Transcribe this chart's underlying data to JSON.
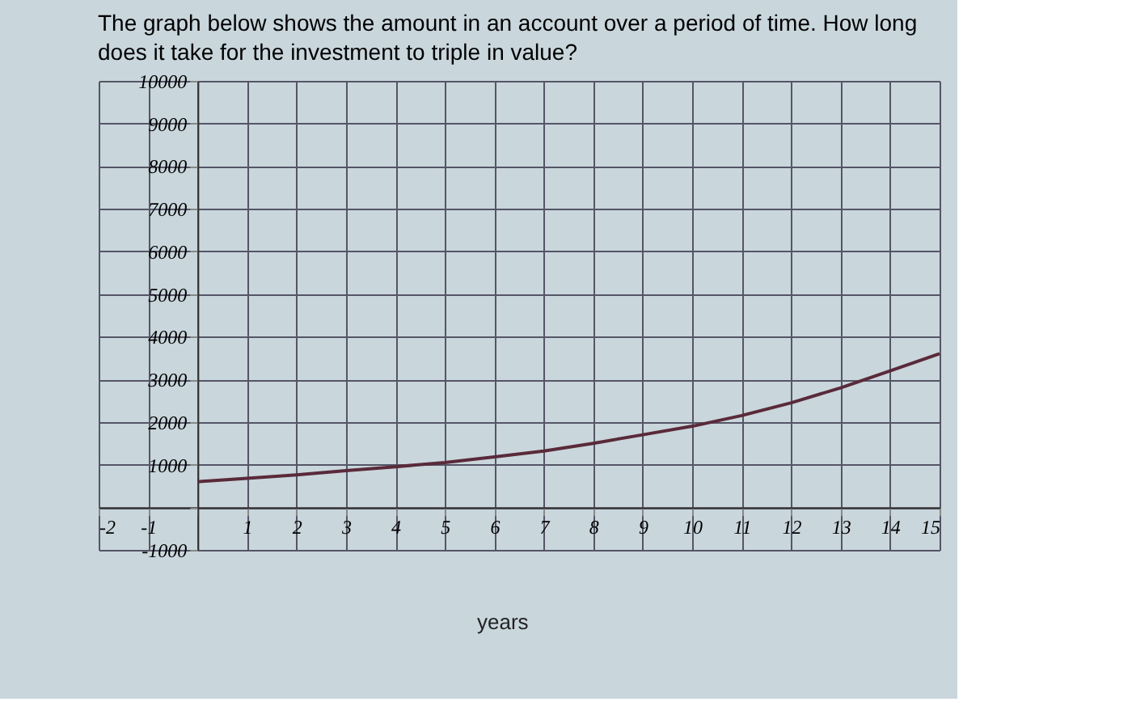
{
  "chart_data": {
    "type": "line",
    "title": "The graph below shows the amount in an account over a period of time. How long does it take for the investment to triple in value?",
    "x": [
      0,
      1,
      2,
      3,
      4,
      5,
      6,
      7,
      8,
      9,
      10,
      11,
      12,
      13,
      14,
      15
    ],
    "series": [
      {
        "color": "#5a2a3a",
        "values": [
          600,
          680,
          760,
          860,
          950,
          1050,
          1180,
          1320,
          1500,
          1700,
          1900,
          2150,
          2450,
          2800,
          3200,
          3600
        ]
      }
    ],
    "xlim": [
      -2,
      15
    ],
    "ylim": [
      -1000,
      10000
    ],
    "xticks": [
      -2,
      -1,
      {
        "value": 0,
        "label": null
      },
      1,
      2,
      3,
      4,
      5,
      6,
      7,
      8,
      9,
      10,
      11,
      12,
      13,
      14,
      15
    ],
    "yticks": [
      -1000,
      {
        "value": 0,
        "label": null
      },
      1000,
      2000,
      3000,
      4000,
      5000,
      6000,
      7000,
      8000,
      9000,
      10000
    ],
    "grid": true,
    "marker": "none",
    "line_style": "solid",
    "annotations": [
      "years"
    ]
  }
}
